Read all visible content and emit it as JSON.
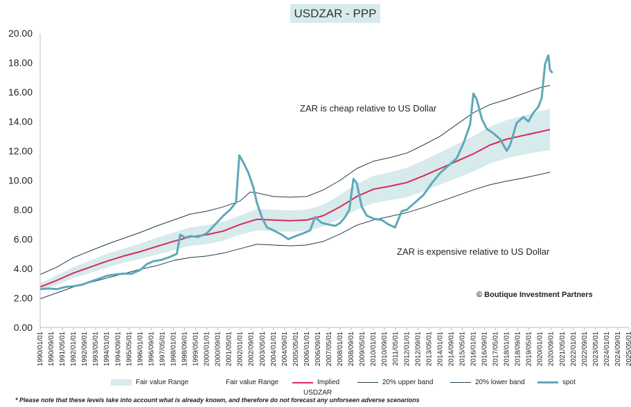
{
  "chart_data": {
    "type": "line",
    "title": "USDZAR - PPP",
    "xlabel": "USDZAR",
    "ylabel": "",
    "ylim": [
      0,
      20
    ],
    "yticks": [
      "0.00",
      "2.00",
      "4.00",
      "6.00",
      "8.00",
      "10.00",
      "12.00",
      "14.00",
      "16.00",
      "18.00",
      "20.00"
    ],
    "xrange": [
      1990.0,
      2025.333
    ],
    "xticks": [
      "1990/01/01",
      "1990/09/01",
      "1991/05/01",
      "1992/01/01",
      "1992/09/01",
      "1993/05/01",
      "1994/01/01",
      "1994/09/01",
      "1995/05/01",
      "1996/01/01",
      "1996/09/01",
      "1997/05/01",
      "1998/01/01",
      "1998/09/01",
      "1999/05/01",
      "2000/01/01",
      "2000/09/01",
      "2001/05/01",
      "2002/01/01",
      "2002/09/01",
      "2003/05/01",
      "2004/01/01",
      "2004/09/01",
      "2005/05/01",
      "2006/01/01",
      "2006/09/01",
      "2007/05/01",
      "2008/01/01",
      "2008/09/01",
      "2009/05/01",
      "2010/01/01",
      "2010/09/01",
      "2011/05/01",
      "2012/01/01",
      "2012/09/01",
      "2013/05/01",
      "2014/01/01",
      "2014/09/01",
      "2015/05/01",
      "2016/01/01",
      "2016/09/01",
      "2017/05/01",
      "2018/01/01",
      "2018/09/01",
      "2019/05/01",
      "2020/01/01",
      "2020/09/01",
      "2021/05/01",
      "2022/01/01",
      "2022/09/01",
      "2023/05/01",
      "2024/01/01",
      "2024/09/01",
      "2025/05/01"
    ],
    "series": [
      {
        "name": "Implied",
        "color": "#d9275a",
        "x": [
          1990.0,
          1991.0,
          1992.0,
          1993.0,
          1994.0,
          1995.0,
          1996.0,
          1997.0,
          1998.0,
          1999.0,
          2000.0,
          2001.0,
          2002.0,
          2003.0,
          2004.0,
          2005.0,
          2006.0,
          2007.0,
          2008.0,
          2009.0,
          2010.0,
          2011.0,
          2012.0,
          2013.0,
          2014.0,
          2015.0,
          2016.0,
          2017.0,
          2018.0,
          2019.0,
          2020.0,
          2020.6
        ],
        "values": [
          2.75,
          3.2,
          3.7,
          4.1,
          4.5,
          4.85,
          5.15,
          5.5,
          5.85,
          6.15,
          6.3,
          6.55,
          7.0,
          7.35,
          7.3,
          7.25,
          7.3,
          7.6,
          8.2,
          8.9,
          9.4,
          9.6,
          9.85,
          10.3,
          10.8,
          11.3,
          11.8,
          12.4,
          12.8,
          13.05,
          13.3,
          13.45
        ]
      },
      {
        "name": "20% upper band",
        "color": "#1f3b4d",
        "x": [
          1990.0,
          1991.0,
          1992.0,
          1993.0,
          1994.0,
          1995.0,
          1996.0,
          1997.0,
          1998.0,
          1999.0,
          2000.0,
          2001.0,
          2002.0,
          2002.6,
          2003.0,
          2004.0,
          2005.0,
          2006.0,
          2007.0,
          2008.0,
          2009.0,
          2010.0,
          2011.0,
          2012.0,
          2013.0,
          2014.0,
          2015.0,
          2016.0,
          2017.0,
          2018.0,
          2019.0,
          2020.0,
          2020.6
        ],
        "values": [
          3.6,
          4.1,
          4.75,
          5.2,
          5.65,
          6.05,
          6.45,
          6.9,
          7.3,
          7.7,
          7.9,
          8.2,
          8.6,
          9.2,
          9.15,
          8.9,
          8.85,
          8.9,
          9.35,
          10.0,
          10.8,
          11.3,
          11.55,
          11.85,
          12.4,
          13.0,
          13.8,
          14.6,
          15.15,
          15.5,
          15.9,
          16.3,
          16.45
        ]
      },
      {
        "name": "20% lower band",
        "color": "#1f3b4d",
        "x": [
          1990.0,
          1991.0,
          1992.0,
          1993.0,
          1994.0,
          1995.0,
          1996.0,
          1997.0,
          1998.0,
          1999.0,
          2000.0,
          2001.0,
          2002.0,
          2003.0,
          2004.0,
          2005.0,
          2006.0,
          2007.0,
          2008.0,
          2009.0,
          2010.0,
          2011.0,
          2012.0,
          2013.0,
          2014.0,
          2015.0,
          2016.0,
          2017.0,
          2018.0,
          2019.0,
          2020.0,
          2020.6
        ],
        "values": [
          1.95,
          2.35,
          2.75,
          3.05,
          3.35,
          3.65,
          3.95,
          4.2,
          4.55,
          4.75,
          4.85,
          5.05,
          5.35,
          5.65,
          5.6,
          5.55,
          5.6,
          5.85,
          6.35,
          6.95,
          7.3,
          7.55,
          7.8,
          8.15,
          8.55,
          8.95,
          9.35,
          9.7,
          9.95,
          10.15,
          10.4,
          10.55
        ]
      },
      {
        "name": "spot",
        "color": "#5ea8b8",
        "x": [
          1990.0,
          1990.5,
          1991.0,
          1991.5,
          1992.0,
          1992.5,
          1993.0,
          1993.5,
          1994.0,
          1994.5,
          1995.0,
          1995.5,
          1996.0,
          1996.4,
          1996.8,
          1997.3,
          1997.8,
          1998.2,
          1998.4,
          1998.7,
          1999.0,
          1999.5,
          2000.0,
          2000.5,
          2001.0,
          2001.4,
          2001.75,
          2001.95,
          2002.2,
          2002.5,
          2002.8,
          2003.0,
          2003.3,
          2003.6,
          2004.0,
          2004.5,
          2004.9,
          2005.3,
          2005.8,
          2006.2,
          2006.5,
          2006.9,
          2007.3,
          2007.7,
          2008.0,
          2008.3,
          2008.55,
          2008.8,
          2009.0,
          2009.3,
          2009.6,
          2010.0,
          2010.5,
          2010.9,
          2011.3,
          2011.7,
          2012.0,
          2012.5,
          2013.0,
          2013.5,
          2014.0,
          2014.5,
          2015.0,
          2015.4,
          2015.8,
          2016.0,
          2016.2,
          2016.5,
          2016.8,
          2017.2,
          2017.6,
          2018.0,
          2018.2,
          2018.6,
          2019.0,
          2019.3,
          2019.6,
          2019.9,
          2020.1,
          2020.3,
          2020.5,
          2020.6,
          2020.75
        ],
        "values": [
          2.6,
          2.65,
          2.6,
          2.75,
          2.8,
          2.9,
          3.1,
          3.3,
          3.5,
          3.6,
          3.65,
          3.65,
          3.9,
          4.3,
          4.5,
          4.6,
          4.8,
          5.0,
          6.3,
          6.1,
          6.2,
          6.15,
          6.4,
          7.0,
          7.6,
          8.0,
          8.5,
          11.7,
          11.2,
          10.5,
          9.5,
          8.5,
          7.5,
          6.8,
          6.6,
          6.3,
          6.0,
          6.2,
          6.4,
          6.6,
          7.5,
          7.1,
          7.0,
          6.9,
          7.1,
          7.5,
          8.0,
          10.1,
          9.8,
          8.2,
          7.6,
          7.4,
          7.3,
          7.0,
          6.8,
          7.9,
          8.0,
          8.5,
          9.0,
          9.8,
          10.5,
          11.0,
          11.5,
          12.5,
          13.8,
          15.9,
          15.5,
          14.2,
          13.5,
          13.2,
          12.8,
          12.0,
          12.4,
          13.9,
          14.3,
          14.0,
          14.6,
          15.0,
          15.6,
          17.9,
          18.5,
          17.5,
          17.3
        ]
      }
    ],
    "fair_value_range": {
      "name": "Fair value Range",
      "color": "#d7eaec",
      "x": [
        1990.0,
        1991.0,
        1992.0,
        1993.0,
        1994.0,
        1995.0,
        1996.0,
        1997.0,
        1998.0,
        1999.0,
        2000.0,
        2001.0,
        2002.0,
        2003.0,
        2004.0,
        2005.0,
        2006.0,
        2007.0,
        2008.0,
        2009.0,
        2010.0,
        2011.0,
        2012.0,
        2013.0,
        2014.0,
        2015.0,
        2016.0,
        2017.0,
        2018.0,
        2019.0,
        2020.0,
        2020.6
      ],
      "upper": [
        3.0,
        3.55,
        4.1,
        4.55,
        5.0,
        5.35,
        5.7,
        6.1,
        6.45,
        6.8,
        6.95,
        7.2,
        7.6,
        8.05,
        8.0,
        7.95,
        8.0,
        8.35,
        9.0,
        9.75,
        10.3,
        10.55,
        10.85,
        11.35,
        11.9,
        12.45,
        13.0,
        13.65,
        14.1,
        14.4,
        14.7,
        14.85
      ],
      "lower": [
        2.55,
        2.9,
        3.35,
        3.7,
        4.05,
        4.4,
        4.65,
        4.95,
        5.25,
        5.55,
        5.65,
        5.9,
        6.3,
        6.6,
        6.55,
        6.5,
        6.55,
        6.85,
        7.4,
        8.0,
        8.45,
        8.65,
        8.85,
        9.25,
        9.7,
        10.15,
        10.6,
        11.15,
        11.5,
        11.75,
        11.95,
        12.05
      ]
    },
    "legend": [
      "Fair value Range",
      "Fair value Range",
      "Implied",
      "20% upper band",
      "20% lower band",
      "spot"
    ],
    "annotations": {
      "cheap": "ZAR is cheap relative to US Dollar",
      "expensive": "ZAR is expensive relative to US Dollar",
      "copyright": "© Boutique Investment Partners",
      "footnote": "* Please note that these levels take into account what is already known, and therefore do not forecast any unforseen adverse scenarions"
    }
  }
}
